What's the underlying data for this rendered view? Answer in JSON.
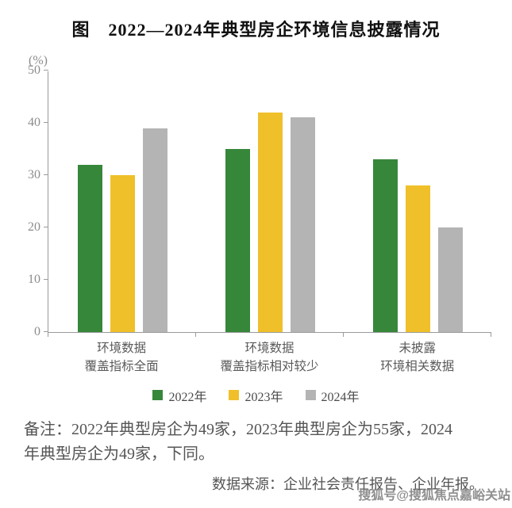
{
  "title": "图　2022—2024年典型房企环境信息披露情况",
  "chart_data": {
    "type": "bar",
    "title": "2022—2024年典型房企环境信息披露情况",
    "unit_label": "(%)",
    "categories": [
      "环境数据\n覆盖指标全面",
      "环境数据\n覆盖指标相对较少",
      "未披露\n环境相关数据"
    ],
    "series": [
      {
        "name": "2022年",
        "color": "#37873b",
        "values": [
          32,
          35,
          33
        ]
      },
      {
        "name": "2023年",
        "color": "#f0c02a",
        "values": [
          30,
          42,
          28
        ]
      },
      {
        "name": "2024年",
        "color": "#b4b4b4",
        "values": [
          39,
          41,
          20
        ]
      }
    ],
    "ylim": [
      0,
      50
    ],
    "yticks": [
      0,
      10,
      20,
      30,
      40,
      50
    ],
    "grid": false,
    "legend_position": "bottom"
  },
  "note": "备注：2022年典型房企为49家，2023年典型房企为55家，2024\n年典型房企为49家，下同。",
  "source": "数据来源：企业社会责任报告、企业年报。",
  "watermark": "搜狐号@搜狐焦点嘉峪关站"
}
